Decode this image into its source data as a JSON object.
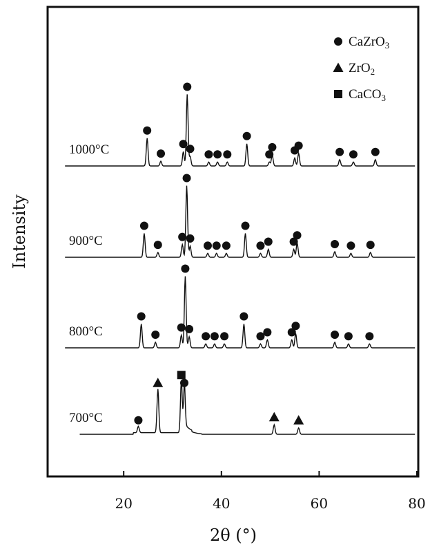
{
  "chart_data": {
    "type": "line",
    "title": "",
    "xlabel": "2θ (°)",
    "ylabel": "Intensity",
    "xlim": [
      5,
      80
    ],
    "x_ticks": [
      20,
      40,
      60,
      80
    ],
    "y_ticks_shown": false,
    "grid": false,
    "legend_position": "top-right",
    "legend": [
      {
        "label": "CaZrO3",
        "formula": [
          "CaZrO",
          "3"
        ],
        "marker": "circle"
      },
      {
        "label": "ZrO2",
        "formula": [
          "ZrO",
          "2"
        ],
        "marker": "triangle"
      },
      {
        "label": "CaCO3",
        "formula": [
          "CaCO",
          "3"
        ],
        "marker": "square"
      }
    ],
    "series": [
      {
        "name": "1000°C",
        "peaks": [
          {
            "x": 24.8,
            "h": 0.35,
            "phase": "circle"
          },
          {
            "x": 27.6,
            "h": 0.06,
            "phase": "circle"
          },
          {
            "x": 32.2,
            "h": 0.18,
            "phase": "circle"
          },
          {
            "x": 33.0,
            "h": 0.9,
            "phase": "circle"
          },
          {
            "x": 33.6,
            "h": 0.12,
            "phase": "circle"
          },
          {
            "x": 37.4,
            "h": 0.05,
            "phase": "circle"
          },
          {
            "x": 39.2,
            "h": 0.05,
            "phase": "circle"
          },
          {
            "x": 41.2,
            "h": 0.05,
            "phase": "circle"
          },
          {
            "x": 45.2,
            "h": 0.28,
            "phase": "circle"
          },
          {
            "x": 49.8,
            "h": 0.05,
            "phase": "circle"
          },
          {
            "x": 50.4,
            "h": 0.14,
            "phase": "circle"
          },
          {
            "x": 55.0,
            "h": 0.1,
            "phase": "circle"
          },
          {
            "x": 55.8,
            "h": 0.16,
            "phase": "circle"
          },
          {
            "x": 64.2,
            "h": 0.08,
            "phase": "circle"
          },
          {
            "x": 67.0,
            "h": 0.05,
            "phase": "circle"
          },
          {
            "x": 71.5,
            "h": 0.08,
            "phase": "circle"
          }
        ]
      },
      {
        "name": "900°C",
        "peaks": [
          {
            "x": 24.2,
            "h": 0.3,
            "phase": "circle"
          },
          {
            "x": 27.0,
            "h": 0.06,
            "phase": "circle"
          },
          {
            "x": 32.0,
            "h": 0.16,
            "phase": "circle"
          },
          {
            "x": 32.9,
            "h": 0.9,
            "phase": "circle"
          },
          {
            "x": 33.6,
            "h": 0.14,
            "phase": "circle"
          },
          {
            "x": 37.2,
            "h": 0.05,
            "phase": "circle"
          },
          {
            "x": 39.0,
            "h": 0.05,
            "phase": "circle"
          },
          {
            "x": 41.0,
            "h": 0.05,
            "phase": "circle"
          },
          {
            "x": 44.9,
            "h": 0.3,
            "phase": "circle"
          },
          {
            "x": 48.0,
            "h": 0.05,
            "phase": "circle"
          },
          {
            "x": 49.6,
            "h": 0.1,
            "phase": "circle"
          },
          {
            "x": 54.8,
            "h": 0.1,
            "phase": "circle"
          },
          {
            "x": 55.5,
            "h": 0.18,
            "phase": "circle"
          },
          {
            "x": 63.2,
            "h": 0.07,
            "phase": "circle"
          },
          {
            "x": 66.5,
            "h": 0.05,
            "phase": "circle"
          },
          {
            "x": 70.5,
            "h": 0.06,
            "phase": "circle"
          }
        ]
      },
      {
        "name": "800°C",
        "peaks": [
          {
            "x": 23.6,
            "h": 0.3,
            "phase": "circle"
          },
          {
            "x": 26.5,
            "h": 0.07,
            "phase": "circle"
          },
          {
            "x": 31.8,
            "h": 0.16,
            "phase": "circle"
          },
          {
            "x": 32.6,
            "h": 0.9,
            "phase": "circle"
          },
          {
            "x": 33.4,
            "h": 0.14,
            "phase": "circle"
          },
          {
            "x": 36.8,
            "h": 0.05,
            "phase": "circle"
          },
          {
            "x": 38.6,
            "h": 0.05,
            "phase": "circle"
          },
          {
            "x": 40.6,
            "h": 0.05,
            "phase": "circle"
          },
          {
            "x": 44.6,
            "h": 0.3,
            "phase": "circle"
          },
          {
            "x": 48.0,
            "h": 0.05,
            "phase": "circle"
          },
          {
            "x": 49.4,
            "h": 0.1,
            "phase": "circle"
          },
          {
            "x": 54.4,
            "h": 0.1,
            "phase": "circle"
          },
          {
            "x": 55.2,
            "h": 0.18,
            "phase": "circle"
          },
          {
            "x": 63.2,
            "h": 0.07,
            "phase": "circle"
          },
          {
            "x": 66.0,
            "h": 0.05,
            "phase": "circle"
          },
          {
            "x": 70.3,
            "h": 0.05,
            "phase": "circle"
          }
        ]
      },
      {
        "name": "700°C",
        "peaks": [
          {
            "x": 23.0,
            "h": 0.08,
            "phase": "circle"
          },
          {
            "x": 27.0,
            "h": 0.55,
            "phase": "triangle"
          },
          {
            "x": 31.8,
            "h": 0.65,
            "phase": "square"
          },
          {
            "x": 32.4,
            "h": 0.55,
            "phase": "circle"
          },
          {
            "x": 50.8,
            "h": 0.12,
            "phase": "triangle"
          },
          {
            "x": 55.8,
            "h": 0.08,
            "phase": "triangle"
          }
        ]
      }
    ]
  }
}
